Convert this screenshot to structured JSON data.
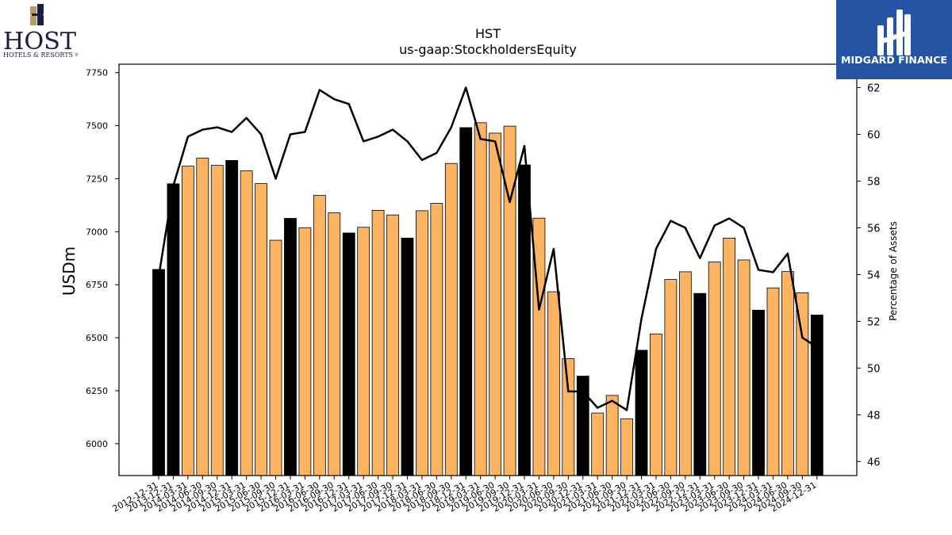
{
  "logos": {
    "left": {
      "text": "HOST",
      "subtext": "HOTELS & RESORTS",
      "mark": "®"
    },
    "right": {
      "text": "MIDGARD FINANCE",
      "color": "#2454a3"
    }
  },
  "chart_data": {
    "type": "bar",
    "title": "HST",
    "subtitle": "us-gaap:StockholdersEquity",
    "ylabel": "USDm",
    "y2label": "Percentage of Assets",
    "ylim": [
      5850,
      7790
    ],
    "y2lim": [
      45.4,
      63.0
    ],
    "yticks": [
      6000,
      6250,
      6500,
      6750,
      7000,
      7250,
      7500,
      7750
    ],
    "y2ticks": [
      46,
      48,
      50,
      52,
      54,
      56,
      58,
      60,
      62
    ],
    "bar_colors": {
      "quarterly": "#fdb462",
      "year_end": "#000000"
    },
    "line_color": "#000000",
    "categories": [
      "2012-12-31",
      "2013-12-31",
      "2014-03-31",
      "2014-06-30",
      "2014-09-30",
      "2014-12-31",
      "2015-03-31",
      "2015-06-30",
      "2015-09-30",
      "2015-12-31",
      "2016-03-31",
      "2016-06-30",
      "2016-09-30",
      "2016-12-31",
      "2017-03-31",
      "2017-06-30",
      "2017-09-30",
      "2017-12-31",
      "2018-03-31",
      "2018-06-30",
      "2018-09-30",
      "2018-12-31",
      "2019-03-31",
      "2019-06-30",
      "2019-09-30",
      "2019-12-31",
      "2020-03-31",
      "2020-06-30",
      "2020-09-30",
      "2020-12-31",
      "2021-03-31",
      "2021-06-30",
      "2021-09-30",
      "2021-12-31",
      "2022-03-31",
      "2022-06-30",
      "2022-09-30",
      "2022-12-31",
      "2023-03-31",
      "2023-06-30",
      "2023-09-30",
      "2023-12-31",
      "2024-03-31",
      "2024-06-30",
      "2024-09-30",
      "2024-12-31"
    ],
    "series": [
      {
        "type": "bar",
        "values": [
          6822,
          7226,
          7309,
          7347,
          7313,
          7336,
          7287,
          7227,
          6960,
          7063,
          7019,
          7171,
          7089,
          6994,
          7021,
          7101,
          7079,
          6970,
          7099,
          7134,
          7322,
          7491,
          7514,
          7465,
          7498,
          7315,
          7064,
          6717,
          6401,
          6319,
          6145,
          6228,
          6118,
          6441,
          6518,
          6775,
          6811,
          6709,
          6857,
          6970,
          6867,
          6630,
          6735,
          6812,
          6712,
          6607
        ]
      },
      {
        "type": "line",
        "axis": "right",
        "values": [
          53.9,
          57.8,
          59.9,
          60.2,
          60.3,
          60.1,
          60.7,
          60.0,
          58.1,
          60.0,
          60.1,
          61.9,
          61.5,
          61.3,
          59.7,
          59.9,
          60.2,
          59.7,
          58.9,
          59.2,
          60.3,
          62.0,
          59.8,
          59.7,
          57.1,
          59.5,
          52.5,
          55.1,
          49.0,
          49.0,
          48.3,
          48.6,
          48.2,
          52.1,
          55.1,
          56.3,
          56.0,
          54.7,
          56.1,
          56.4,
          56.0,
          54.2,
          54.1,
          54.9,
          51.3,
          50.9
        ]
      }
    ]
  }
}
